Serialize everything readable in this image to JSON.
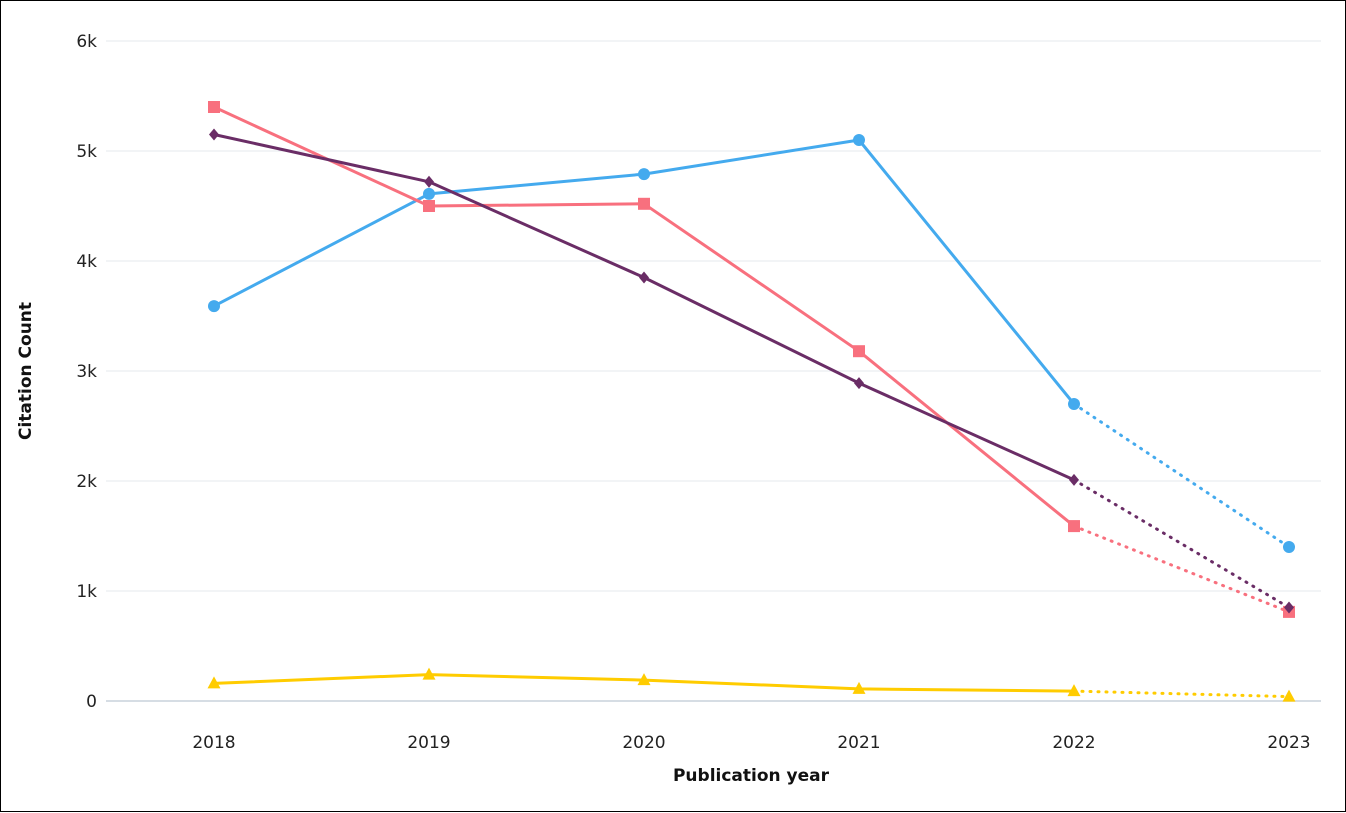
{
  "chart_data": {
    "type": "line",
    "title": "",
    "xlabel": "Publication year",
    "ylabel": "Citation Count",
    "x": [
      "2018",
      "2019",
      "2020",
      "2021",
      "2022",
      "2023"
    ],
    "y_ticks": [
      {
        "value": 0,
        "label": "0"
      },
      {
        "value": 1000,
        "label": "1k"
      },
      {
        "value": 2000,
        "label": "2k"
      },
      {
        "value": 3000,
        "label": "3k"
      },
      {
        "value": 4000,
        "label": "4k"
      },
      {
        "value": 5000,
        "label": "5k"
      },
      {
        "value": 6000,
        "label": "6k"
      }
    ],
    "ylim": [
      0,
      6000
    ],
    "grid": true,
    "legend": "none",
    "note": "Last segment (2022–2023) drawn dotted",
    "series": [
      {
        "color": "#44aaee",
        "marker": "circle",
        "values": [
          3590,
          4610,
          4790,
          5100,
          2700,
          1400
        ]
      },
      {
        "color": "#f8707e",
        "marker": "square",
        "values": [
          5400,
          4500,
          4520,
          3180,
          1590,
          810
        ]
      },
      {
        "color": "#6a2d66",
        "marker": "diamond",
        "values": [
          5150,
          4720,
          3850,
          2890,
          2010,
          850
        ]
      },
      {
        "color": "#ffcc00",
        "marker": "triangle",
        "values": [
          160,
          240,
          190,
          110,
          90,
          40
        ]
      }
    ]
  }
}
